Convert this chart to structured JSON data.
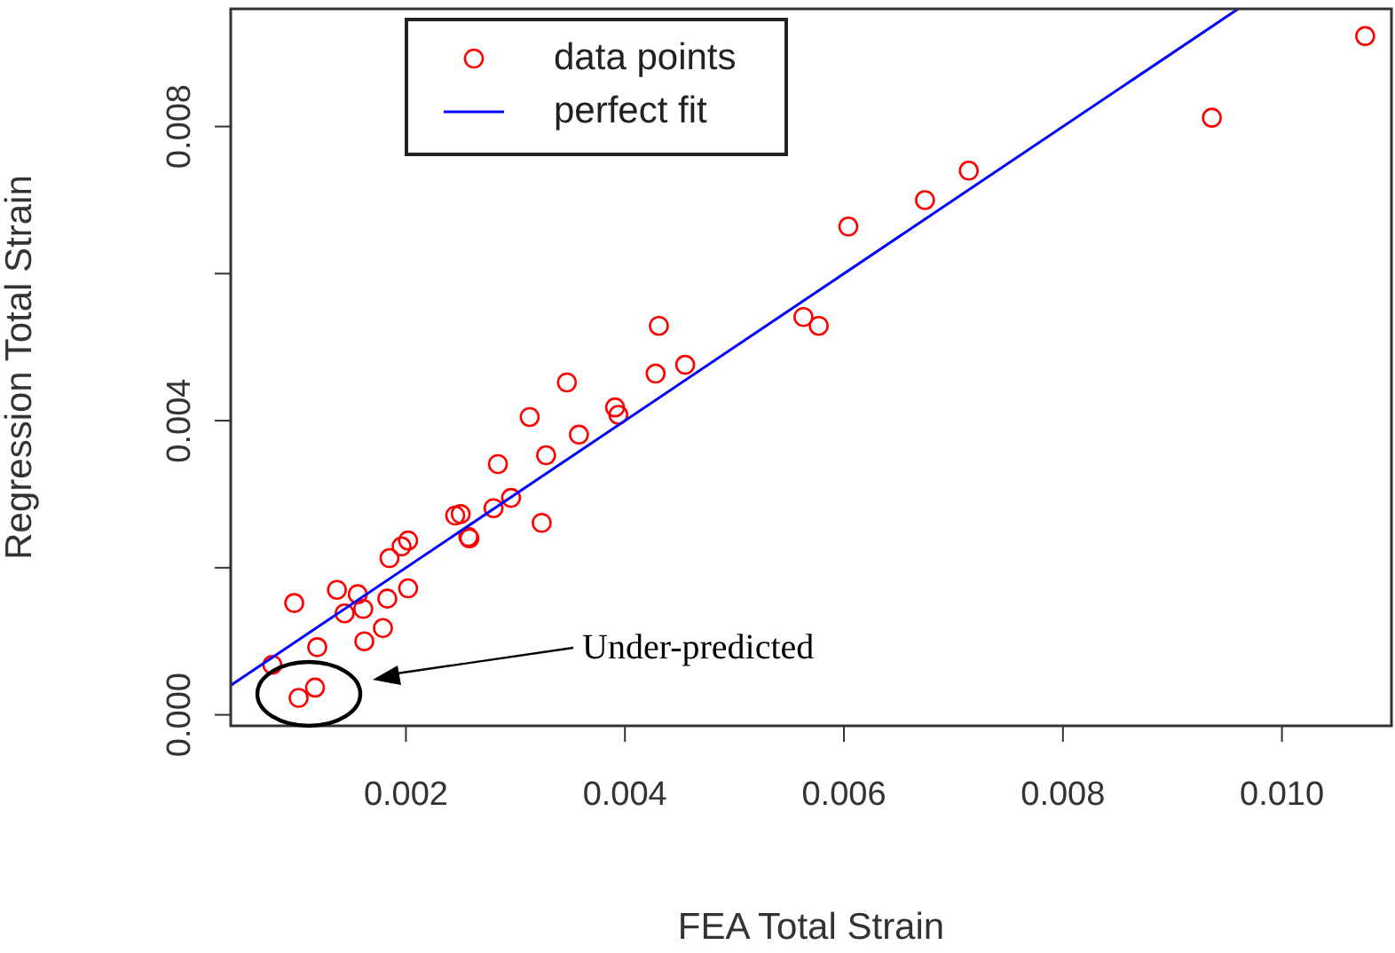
{
  "chart_data": {
    "type": "scatter",
    "xlabel": "FEA Total Strain",
    "ylabel": "Regression Total Strain",
    "xlim": [
      0.0004,
      0.011
    ],
    "ylim": [
      -0.00015,
      0.0096
    ],
    "xticks": [
      0.002,
      0.004,
      0.006,
      0.008,
      {
        "value": 0.01,
        "label": "0.010"
      }
    ],
    "yticks": [
      {
        "value": 0,
        "label": "0.000"
      },
      {
        "value": 0.002,
        "label": null
      },
      0.004,
      {
        "value": 0.006,
        "label": null
      },
      0.008
    ],
    "grid": false,
    "legend": "top left",
    "series": [
      {
        "name": "data points",
        "type": "scatter",
        "marker": "circle",
        "color": "#ff0000",
        "x": [
          0.00347,
          0.00313,
          0.00391,
          0.00394,
          0.00358,
          0.00284,
          0.00328,
          0.00245,
          0.0025,
          0.0028,
          0.00296,
          0.00324,
          0.00257,
          0.00258,
          0.00202,
          0.00196,
          0.00185,
          0.00137,
          0.00156,
          0.00183,
          0.00202,
          0.00098,
          0.00161,
          0.00144,
          0.00179,
          0.00162,
          0.00119,
          0.00078,
          0.00102,
          0.00117,
          0.01076,
          0.00936,
          0.00714,
          0.00674,
          0.00604,
          0.00563,
          0.00577,
          0.00431,
          0.00428,
          0.00455
        ],
        "values": [
          0.00452,
          0.00405,
          0.00418,
          0.00408,
          0.00381,
          0.00341,
          0.00353,
          0.00271,
          0.00273,
          0.00281,
          0.00295,
          0.00261,
          0.00242,
          0.0024,
          0.00237,
          0.00229,
          0.00213,
          0.0017,
          0.00164,
          0.00158,
          0.00172,
          0.00152,
          0.00144,
          0.00138,
          0.00118,
          0.001,
          0.00092,
          0.00068,
          0.00023,
          0.00037,
          0.00923,
          0.00812,
          0.0074,
          0.007,
          0.00664,
          0.00541,
          0.00529,
          0.00529,
          0.00464,
          0.00476
        ]
      },
      {
        "name": "perfect fit",
        "type": "line",
        "marker": "none",
        "line_style": "solid",
        "color": "#0000ff",
        "x": [
          0.0004,
          0.0096
        ],
        "values": [
          0.0004,
          0.0096
        ]
      }
    ],
    "annotations": [
      "Under-predicted"
    ]
  }
}
